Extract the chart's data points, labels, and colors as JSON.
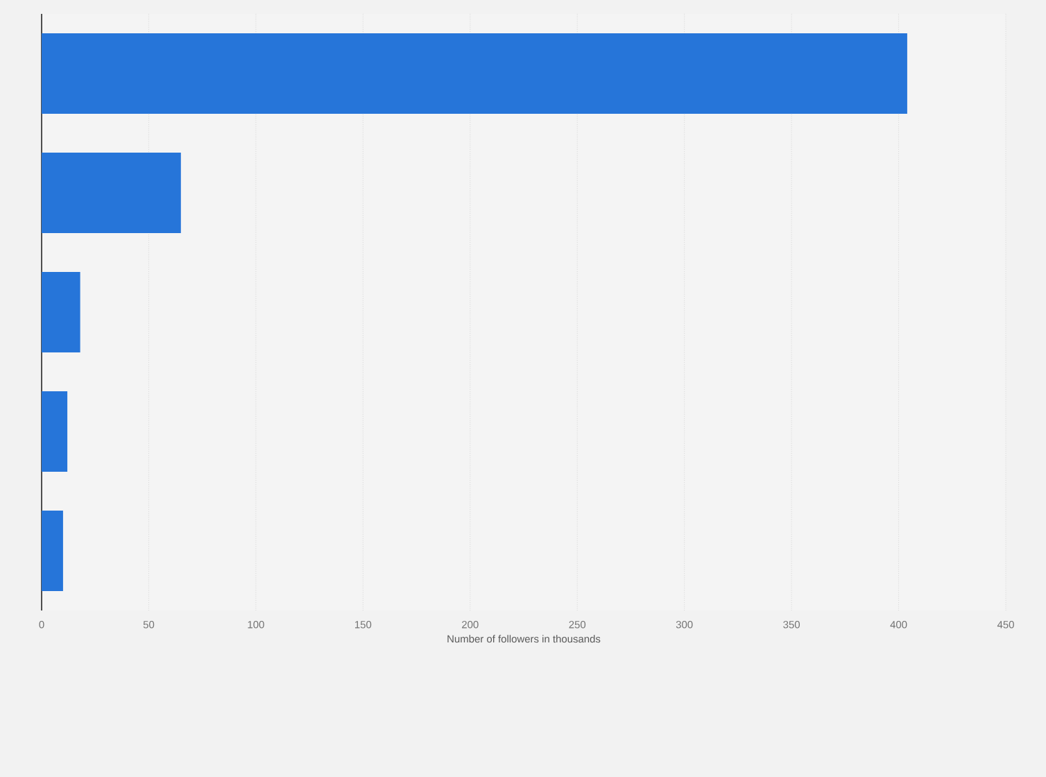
{
  "chart_data": {
    "type": "bar",
    "orientation": "horizontal",
    "xlabel": "Number of followers in thousands",
    "categories": [
      null,
      null,
      null,
      null,
      null
    ],
    "values": [
      404,
      65,
      18,
      12,
      10
    ],
    "color": "#2675d9",
    "xlim": [
      0,
      450
    ],
    "xticks": [
      0,
      50,
      100,
      150,
      200,
      250,
      300,
      350,
      400,
      450
    ],
    "grid": "x"
  }
}
